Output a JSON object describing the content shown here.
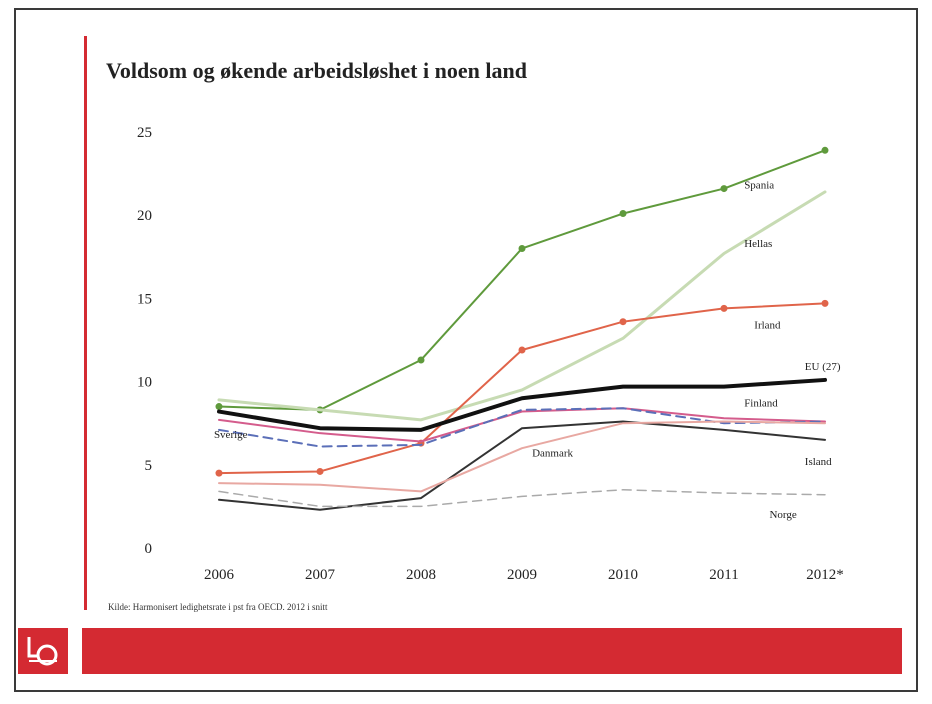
{
  "slide": {
    "title": "Voldsom og økende arbeidsløshet i noen land",
    "source": "Kilde: Harmonisert ledighetsrate i pst fra OECD. 2012 i snitt",
    "footer_text": "",
    "logo_text": "LO",
    "colors": {
      "accent": "#d42a32"
    }
  },
  "chart_data": {
    "type": "line",
    "title": "Voldsom og økende arbeidsløshet i noen land",
    "xlabel": "",
    "ylabel": "",
    "categories": [
      "2006",
      "2007",
      "2008",
      "2009",
      "2010",
      "2011",
      "2012*"
    ],
    "ylim": [
      0,
      25
    ],
    "yticks": [
      0,
      5,
      10,
      15,
      20,
      25
    ],
    "grid": false,
    "series": [
      {
        "name": "Spania",
        "color": "#5f9a3c",
        "width": 2,
        "markers": true,
        "values": [
          8.5,
          8.3,
          11.3,
          18.0,
          20.1,
          21.6,
          23.9
        ]
      },
      {
        "name": "Hellas",
        "color": "#c7dbb3",
        "width": 3,
        "markers": false,
        "values": [
          8.9,
          8.3,
          7.7,
          9.5,
          12.6,
          17.7,
          21.4
        ]
      },
      {
        "name": "Irland",
        "color": "#e0644a",
        "width": 2,
        "markers": true,
        "values": [
          4.5,
          4.6,
          6.3,
          11.9,
          13.6,
          14.4,
          14.7
        ]
      },
      {
        "name": "EU (27)",
        "color": "#111111",
        "width": 4,
        "markers": false,
        "values": [
          8.2,
          7.2,
          7.1,
          9.0,
          9.7,
          9.7,
          10.1
        ]
      },
      {
        "name": "Finland",
        "color": "#d45c8c",
        "width": 2,
        "markers": false,
        "values": [
          7.7,
          6.9,
          6.4,
          8.2,
          8.4,
          7.8,
          7.6
        ]
      },
      {
        "name": "Sverige",
        "color": "#5b6fb8",
        "width": 2,
        "markers": false,
        "dashed": true,
        "values": [
          7.1,
          6.1,
          6.2,
          8.3,
          8.4,
          7.5,
          7.6
        ]
      },
      {
        "name": "Island",
        "color": "#333333",
        "width": 2,
        "markers": false,
        "values": [
          2.9,
          2.3,
          3.0,
          7.2,
          7.6,
          7.1,
          6.5
        ]
      },
      {
        "name": "Danmark",
        "color": "#e8a8a2",
        "width": 2,
        "markers": false,
        "values": [
          3.9,
          3.8,
          3.4,
          6.0,
          7.5,
          7.6,
          7.5
        ]
      },
      {
        "name": "Norge",
        "color": "#aaaaaa",
        "width": 1.5,
        "markers": false,
        "dashed": true,
        "values": [
          3.4,
          2.5,
          2.5,
          3.1,
          3.5,
          3.3,
          3.2
        ]
      }
    ],
    "annotations": [
      {
        "label": "Spania",
        "series": "Spania",
        "x": 5.2,
        "y": 21.6
      },
      {
        "label": "Hellas",
        "series": "Hellas",
        "x": 5.2,
        "y": 18.1
      },
      {
        "label": "Irland",
        "series": "Irland",
        "x": 5.3,
        "y": 13.2
      },
      {
        "label": "EU (27)",
        "series": "EU (27)",
        "x": 5.8,
        "y": 10.7
      },
      {
        "label": "Finland",
        "series": "Finland",
        "x": 5.2,
        "y": 8.5
      },
      {
        "label": "Sverige",
        "series": "Sverige",
        "x": -0.05,
        "y": 6.6
      },
      {
        "label": "Danmark",
        "series": "Danmark",
        "x": 3.1,
        "y": 5.5
      },
      {
        "label": "Island",
        "series": "Island",
        "x": 5.8,
        "y": 5.0
      },
      {
        "label": "Norge",
        "series": "Norge",
        "x": 5.45,
        "y": 1.8
      }
    ]
  }
}
